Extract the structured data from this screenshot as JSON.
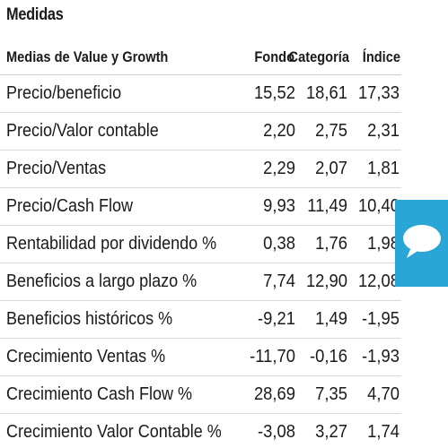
{
  "section": {
    "title": "Medidas"
  },
  "table": {
    "headers": {
      "label": "Medias de Value y Growth",
      "fondo": "Fondo",
      "categoria": "Categoría",
      "indice": "Índice"
    },
    "rows": [
      {
        "label": "Precio/beneficio",
        "fondo": "15,52",
        "categoria": "18,61",
        "indice": "17,33"
      },
      {
        "label": "Precio/Valor contable",
        "fondo": "2,20",
        "categoria": "2,75",
        "indice": "2,31"
      },
      {
        "label": "Precio/Ventas",
        "fondo": "2,29",
        "categoria": "2,07",
        "indice": "1,81"
      },
      {
        "label": "Precio/Cash Flow",
        "fondo": "9,93",
        "categoria": "11,49",
        "indice": "10,40"
      },
      {
        "label": "Rentabilidad por dividendo %",
        "fondo": "0,38",
        "categoria": "1,76",
        "indice": "1,98"
      },
      {
        "label": "Beneficios a largo plazo %",
        "fondo": "7,74",
        "categoria": "12,90",
        "indice": "12,08"
      },
      {
        "label": "Beneficios históricos %",
        "fondo": "-9,21",
        "categoria": "1,49",
        "indice": "-1,95"
      },
      {
        "label": "Crecimiento Ventas %",
        "fondo": "-11,70",
        "categoria": "-0,16",
        "indice": "-1,93"
      },
      {
        "label": "Crecimiento Cash Flow %",
        "fondo": "28,69",
        "categoria": "7,35",
        "indice": "4,70"
      },
      {
        "label": "Crecimiento Valor Contable %",
        "fondo": "-3,08",
        "categoria": "3,27",
        "indice": "1,74"
      }
    ]
  },
  "chat_widget": {
    "icon": "speech-bubble-icon",
    "color": "#2aa6d6"
  }
}
